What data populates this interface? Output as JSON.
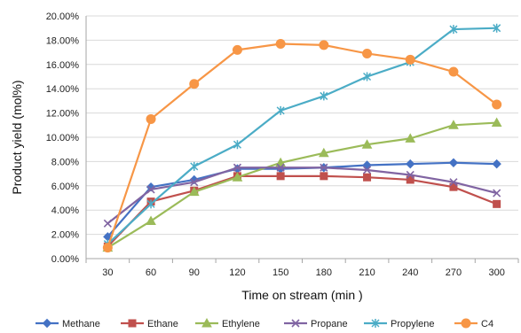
{
  "chart_data": {
    "type": "line",
    "title": "",
    "xlabel": "Time on stream (min )",
    "ylabel": "Product yield (mol%)",
    "x": [
      30,
      60,
      90,
      120,
      150,
      180,
      210,
      240,
      270,
      300
    ],
    "x_tick_labels": [
      "30",
      "60",
      "90",
      "120",
      "150",
      "180",
      "210",
      "240",
      "270",
      "300"
    ],
    "ylim": [
      0,
      20
    ],
    "y_tick_values": [
      0,
      2,
      4,
      6,
      8,
      10,
      12,
      14,
      16,
      18,
      20
    ],
    "y_tick_labels": [
      "0.00%",
      "2.00%",
      "4.00%",
      "6.00%",
      "8.00%",
      "10.00%",
      "12.00%",
      "14.00%",
      "16.00%",
      "18.00%",
      "20.00%"
    ],
    "y_unit": "percent",
    "grid": "horizontal",
    "legend_position": "bottom",
    "series": [
      {
        "name": "Methane",
        "color": "#4472C4",
        "marker": "diamond",
        "values": [
          1.8,
          5.9,
          6.5,
          7.4,
          7.4,
          7.5,
          7.7,
          7.8,
          7.9,
          7.8
        ]
      },
      {
        "name": "Ethane",
        "color": "#C0504D",
        "marker": "square",
        "values": [
          1.0,
          4.7,
          5.6,
          6.8,
          6.8,
          6.8,
          6.7,
          6.5,
          5.9,
          4.5
        ]
      },
      {
        "name": "Ethylene",
        "color": "#9BBB59",
        "marker": "triangle",
        "values": [
          0.9,
          3.1,
          5.5,
          6.7,
          7.9,
          8.7,
          9.4,
          9.9,
          11.0,
          11.2
        ]
      },
      {
        "name": "Propane",
        "color": "#8064A2",
        "marker": "x",
        "values": [
          2.9,
          5.7,
          6.3,
          7.5,
          7.5,
          7.5,
          7.3,
          6.9,
          6.3,
          5.4
        ]
      },
      {
        "name": "Propylene",
        "color": "#4BACC6",
        "marker": "star",
        "values": [
          1.2,
          4.5,
          7.6,
          9.4,
          12.2,
          13.4,
          15.0,
          16.2,
          18.9,
          19.0
        ]
      },
      {
        "name": "C4",
        "color": "#F79646",
        "marker": "circle",
        "values": [
          0.9,
          11.5,
          14.4,
          17.2,
          17.7,
          17.6,
          16.9,
          16.4,
          15.4,
          12.7
        ]
      }
    ]
  }
}
